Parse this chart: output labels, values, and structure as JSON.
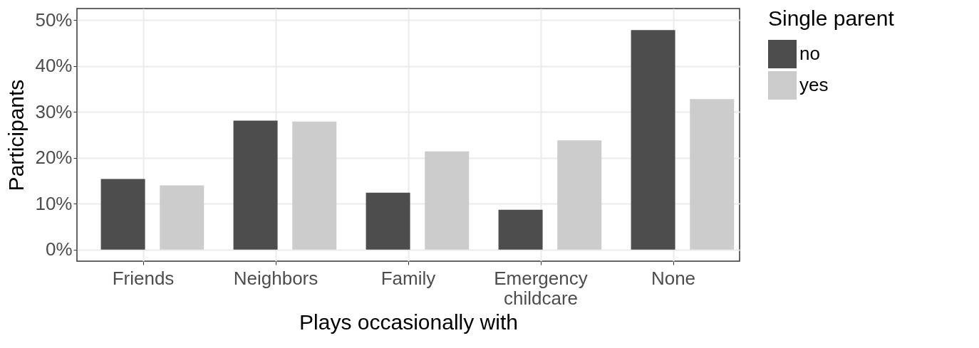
{
  "chart_data": {
    "type": "bar",
    "xlabel": "Plays occasionally with",
    "ylabel": "Participants",
    "legend_title": "Single parent",
    "categories": [
      "Friends",
      "Neighbors",
      "Family",
      "Emergency childcare",
      "None"
    ],
    "series": [
      {
        "name": "no",
        "color": "#4d4d4d",
        "values": [
          15.4,
          28.1,
          12.4,
          8.7,
          47.8
        ]
      },
      {
        "name": "yes",
        "color": "#cccccc",
        "values": [
          14.0,
          27.9,
          21.4,
          23.8,
          32.8
        ]
      }
    ],
    "ylim": [
      -2.5,
      52.5
    ],
    "yticks": [
      {
        "value": 0,
        "label": "0%"
      },
      {
        "value": 10,
        "label": "10%"
      },
      {
        "value": 20,
        "label": "20%"
      },
      {
        "value": 30,
        "label": "30%"
      },
      {
        "value": 40,
        "label": "40%"
      },
      {
        "value": 50,
        "label": "50%"
      }
    ],
    "grid": true,
    "legend": "right"
  }
}
